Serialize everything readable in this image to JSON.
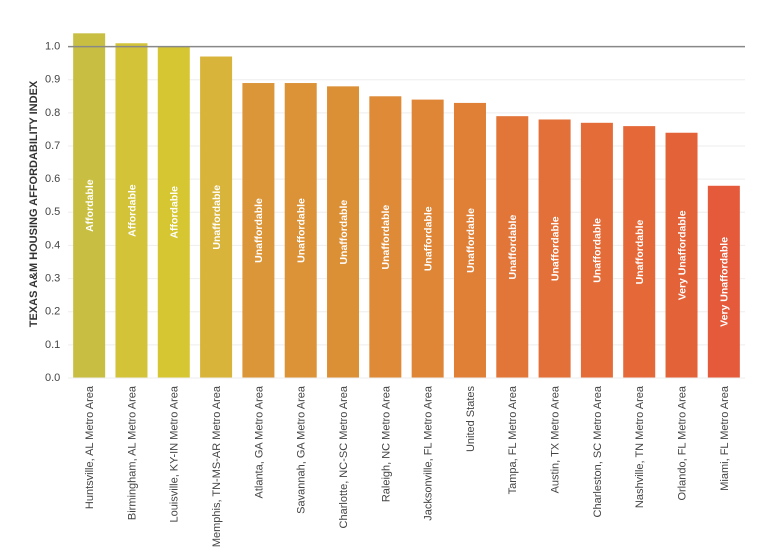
{
  "chart_data": {
    "type": "bar",
    "y_axis_label": "TEXAS A&M HOUSING AFFORDABILITY INDEX",
    "categories": [
      "Huntsville, AL Metro Area",
      "Birmingham, AL Metro Area",
      "Louisville, KY-IN Metro Area",
      "Memphis, TN-MS-AR Metro Area",
      "Atlanta, GA Metro Area",
      "Savannah, GA Metro Area",
      "Charlotte, NC-SC Metro Area",
      "Raleigh, NC Metro Area",
      "Jacksonville, FL Metro Area",
      "United States",
      "Tampa, FL Metro Area",
      "Austin, TX Metro Area",
      "Charleston, SC Metro Area",
      "Nashville, TN Metro Area",
      "Orlando, FL Metro Area",
      "Miami, FL Metro Area"
    ],
    "values": [
      1.04,
      1.01,
      1.0,
      0.97,
      0.89,
      0.89,
      0.88,
      0.85,
      0.84,
      0.83,
      0.79,
      0.78,
      0.77,
      0.76,
      0.74,
      0.58
    ],
    "bar_labels": [
      "Affordable",
      "Affordable",
      "Affordable",
      "Unaffordable",
      "Unaffordable",
      "Unaffordable",
      "Unaffordable",
      "Unaffordable",
      "Unaffordable",
      "Unaffordable",
      "Unaffordable",
      "Unaffordable",
      "Unaffordable",
      "Unaffordable",
      "Very Unaffordable",
      "Very Unaffordable"
    ],
    "colors": [
      "#c8bf42",
      "#d2c338",
      "#d6c732",
      "#d8b43a",
      "#dc963a",
      "#dc9338",
      "#dc9036",
      "#de8a36",
      "#df8636",
      "#e07f36",
      "#e27538",
      "#e37038",
      "#e36c38",
      "#e46838",
      "#e46238",
      "#e55a3a"
    ],
    "ylim": [
      0,
      1.05
    ],
    "yticks": [
      {
        "value": 0,
        "label": "0.0"
      },
      0.1,
      0.2,
      0.3,
      0.4,
      0.5,
      0.6,
      0.7,
      0.8,
      0.9,
      {
        "value": 1,
        "label": "1.0"
      }
    ],
    "reference_line": 1,
    "grid": true
  }
}
